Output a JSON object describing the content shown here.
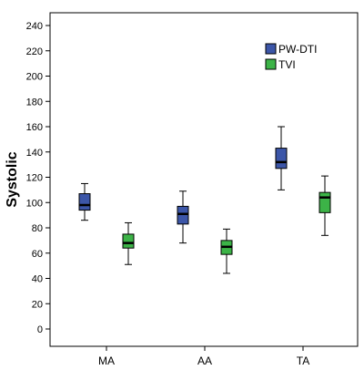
{
  "chart_data": {
    "type": "boxplot",
    "title": "",
    "xlabel": "",
    "ylabel": "Systolic",
    "ylim": [
      0,
      240
    ],
    "yticks": [
      0,
      20,
      40,
      60,
      80,
      100,
      120,
      140,
      160,
      180,
      200,
      220,
      240
    ],
    "grid": false,
    "legend_position": "top-right",
    "categories": [
      "MA",
      "AA",
      "TA"
    ],
    "series": [
      {
        "name": "PW-DTI",
        "color": "#3c56a8",
        "boxes": [
          {
            "min": 86,
            "q1": 94,
            "median": 98,
            "q3": 107,
            "max": 115
          },
          {
            "min": 68,
            "q1": 83,
            "median": 91,
            "q3": 97,
            "max": 109
          },
          {
            "min": 110,
            "q1": 127,
            "median": 132,
            "q3": 143,
            "max": 160
          }
        ]
      },
      {
        "name": "TVI",
        "color": "#3cb347",
        "boxes": [
          {
            "min": 51,
            "q1": 64,
            "median": 68,
            "q3": 75,
            "max": 84
          },
          {
            "min": 44,
            "q1": 59,
            "median": 65,
            "q3": 70,
            "max": 79
          },
          {
            "min": 74,
            "q1": 92,
            "median": 104,
            "q3": 108,
            "max": 121
          }
        ]
      }
    ]
  }
}
